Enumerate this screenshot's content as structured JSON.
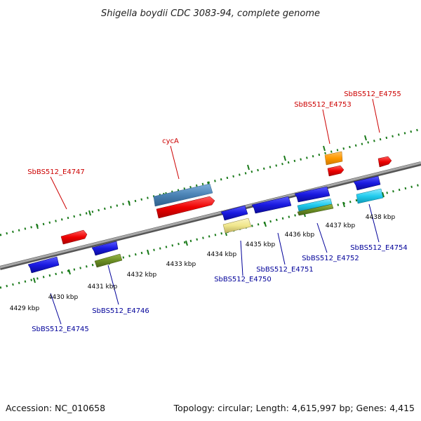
{
  "title": "Shigella boydii CDC 3083-94, complete genome",
  "footer": {
    "accession": "Accession: NC_010658",
    "topology": "Topology: circular; Length: 4,615,997 bp; Genes: 4,415"
  },
  "scale": {
    "ticks": [
      "4429 kbp",
      "4430 kbp",
      "4431 kbp",
      "4432 kbp",
      "4433 kbp",
      "4434 kbp",
      "4435 kbp",
      "4436 kbp",
      "4437 kbp",
      "4438 kbp"
    ]
  },
  "genes": {
    "top_labels": [
      "SbBS512_E4747",
      "cycA",
      "SbBS512_E4753",
      "SbBS512_E4755"
    ],
    "bottom_labels": [
      "SbBS512_E4745",
      "SbBS512_E4746",
      "SbBS512_E4750",
      "SbBS512_E4751",
      "SbBS512_E4752",
      "SbBS512_E4754"
    ]
  },
  "colors": {
    "backbone": "#8c8c8c",
    "dotted_track": "#1a7a1a",
    "forward_gene": "#ee1111",
    "reverse_gene": "#1a1adf",
    "top_label": "#cc0000",
    "bottom_label": "#000099",
    "cycA_bar": "#4a82b4",
    "orange": "#ff9900",
    "olive": "#6b8e23",
    "khaki": "#f0e68c",
    "cyan": "#22ccee"
  }
}
